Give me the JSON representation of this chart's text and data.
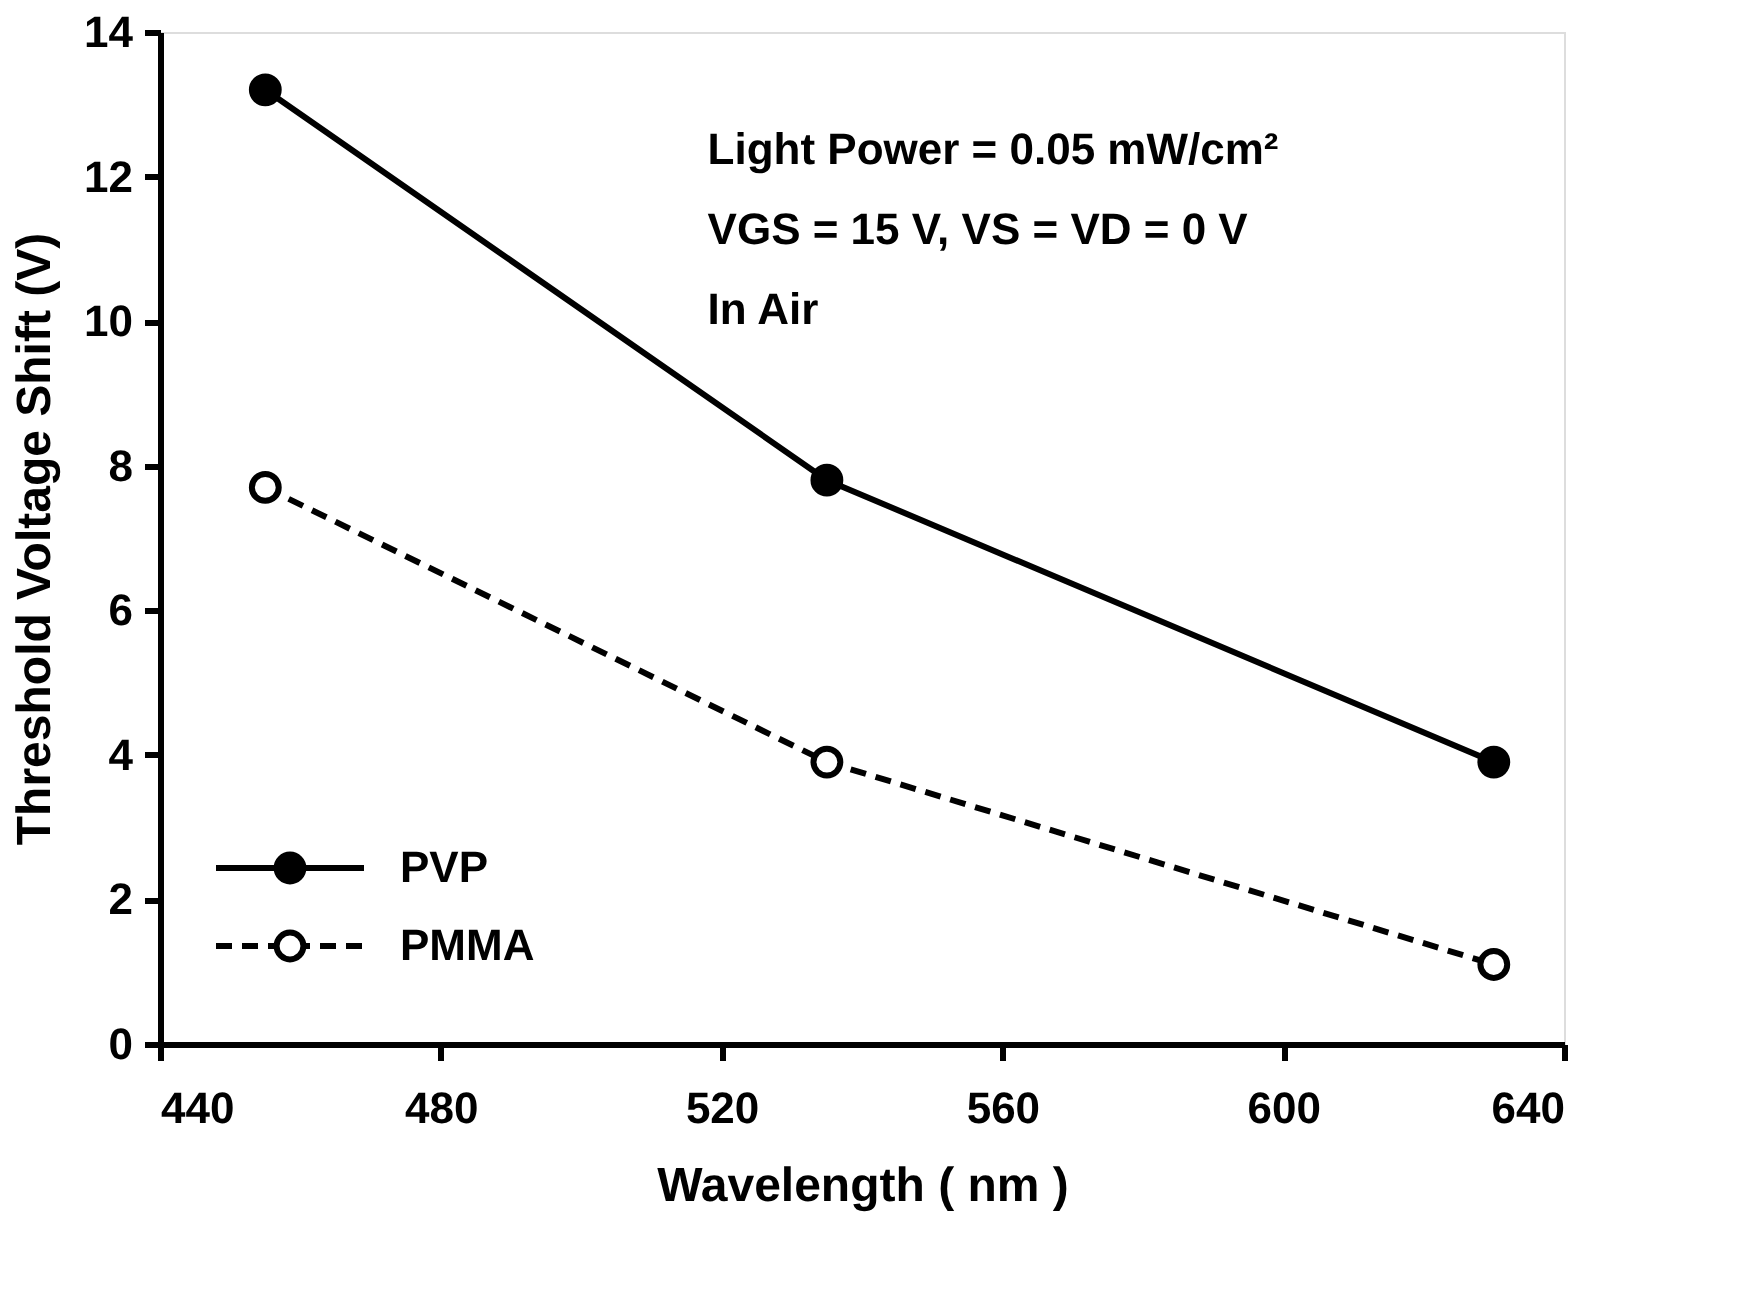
{
  "chart_data": {
    "type": "line",
    "xlabel": "Wavelength  ( nm )",
    "ylabel": "Threshold Voltage Shift  (V)",
    "x": [
      455,
      535,
      630
    ],
    "series": [
      {
        "name": "PVP",
        "color": "#000000",
        "values": [
          13.2,
          7.8,
          3.9
        ],
        "line_style": "solid",
        "marker": "circle"
      },
      {
        "name": "PMMA",
        "color": "#000000",
        "values": [
          7.7,
          3.9,
          1.1
        ],
        "line_style": "dashed",
        "marker": "circle"
      }
    ],
    "xlim": [
      440,
      640
    ],
    "xticks": [
      440,
      480,
      520,
      560,
      600,
      640
    ],
    "ylim": [
      0,
      14
    ],
    "yticks": [
      0,
      2,
      4,
      6,
      8,
      10,
      12,
      14
    ],
    "grid": false,
    "legend": "bottom left",
    "annotations": [
      "Light Power = 0.05 mW/cm²",
      "VGS = 15 V, VS = VD = 0 V",
      "In Air"
    ]
  }
}
